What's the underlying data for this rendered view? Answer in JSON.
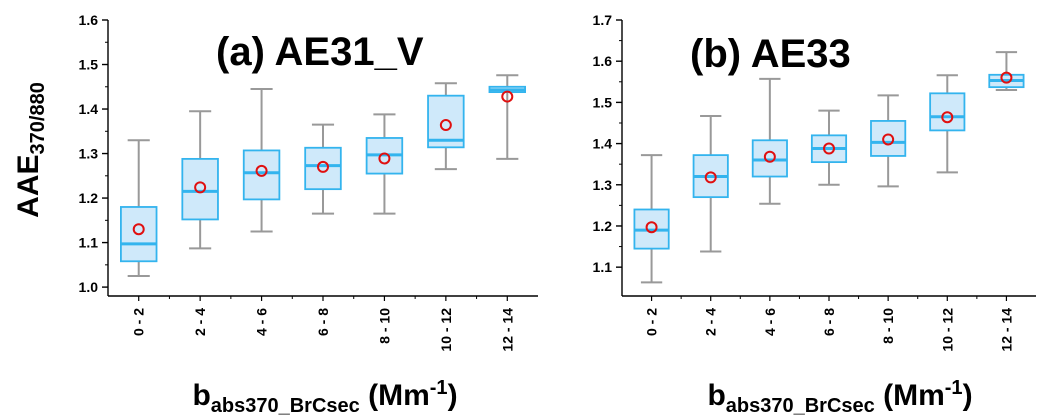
{
  "chart_data": [
    {
      "type": "box",
      "title": "(a) AE31_V",
      "ylabel": {
        "main": "AAE",
        "sub": "370/880"
      },
      "xlabel": {
        "main": "b",
        "sub": "abs370_BrCsec",
        "unit_pre": " (Mm",
        "unit_sup": "-1",
        "unit_post": ")"
      },
      "ylim": [
        0.98,
        1.6
      ],
      "yticks": [
        "1.0",
        "1.1",
        "1.2",
        "1.3",
        "1.4",
        "1.5",
        "1.6"
      ],
      "categories": [
        "0 - 2",
        "2 - 4",
        "4 - 6",
        "6 - 8",
        "8 - 10",
        "10 - 12",
        "12 - 14"
      ],
      "boxes": [
        {
          "whisker_low": 1.025,
          "q1": 1.058,
          "median": 1.097,
          "q3": 1.18,
          "whisker_high": 1.33,
          "mean": 1.13
        },
        {
          "whisker_low": 1.087,
          "q1": 1.152,
          "median": 1.215,
          "q3": 1.288,
          "whisker_high": 1.395,
          "mean": 1.224
        },
        {
          "whisker_low": 1.125,
          "q1": 1.197,
          "median": 1.257,
          "q3": 1.307,
          "whisker_high": 1.445,
          "mean": 1.261
        },
        {
          "whisker_low": 1.165,
          "q1": 1.22,
          "median": 1.273,
          "q3": 1.313,
          "whisker_high": 1.365,
          "mean": 1.27
        },
        {
          "whisker_low": 1.165,
          "q1": 1.255,
          "median": 1.297,
          "q3": 1.335,
          "whisker_high": 1.388,
          "mean": 1.289
        },
        {
          "whisker_low": 1.265,
          "q1": 1.314,
          "median": 1.33,
          "q3": 1.43,
          "whisker_high": 1.458,
          "mean": 1.364
        },
        {
          "whisker_low": 1.288,
          "q1": 1.438,
          "median": 1.443,
          "q3": 1.45,
          "whisker_high": 1.476,
          "mean": 1.428
        }
      ]
    },
    {
      "type": "box",
      "title": "(b) AE33",
      "ylabel": {
        "main": "",
        "sub": ""
      },
      "xlabel": {
        "main": "b",
        "sub": "abs370_BrCsec",
        "unit_pre": " (Mm",
        "unit_sup": "-1",
        "unit_post": ")"
      },
      "ylim": [
        1.03,
        1.7
      ],
      "yticks": [
        "1.1",
        "1.2",
        "1.3",
        "1.4",
        "1.5",
        "1.6",
        "1.7"
      ],
      "categories": [
        "0 - 2",
        "2 - 4",
        "4 - 6",
        "6 - 8",
        "8 - 10",
        "10 - 12",
        "12 - 14"
      ],
      "boxes": [
        {
          "whisker_low": 1.063,
          "q1": 1.145,
          "median": 1.19,
          "q3": 1.24,
          "whisker_high": 1.372,
          "mean": 1.197
        },
        {
          "whisker_low": 1.138,
          "q1": 1.27,
          "median": 1.32,
          "q3": 1.372,
          "whisker_high": 1.467,
          "mean": 1.318
        },
        {
          "whisker_low": 1.254,
          "q1": 1.32,
          "median": 1.36,
          "q3": 1.408,
          "whisker_high": 1.557,
          "mean": 1.368
        },
        {
          "whisker_low": 1.3,
          "q1": 1.355,
          "median": 1.388,
          "q3": 1.42,
          "whisker_high": 1.48,
          "mean": 1.388
        },
        {
          "whisker_low": 1.296,
          "q1": 1.37,
          "median": 1.403,
          "q3": 1.455,
          "whisker_high": 1.517,
          "mean": 1.41
        },
        {
          "whisker_low": 1.33,
          "q1": 1.432,
          "median": 1.465,
          "q3": 1.522,
          "whisker_high": 1.566,
          "mean": 1.464
        },
        {
          "whisker_low": 1.53,
          "q1": 1.537,
          "median": 1.553,
          "q3": 1.567,
          "whisker_high": 1.622,
          "mean": 1.56
        }
      ]
    }
  ],
  "colors": {
    "box_fill": "#cfe9fa",
    "box_edge": "#33b4ee",
    "median": "#33b4ee",
    "whisker": "#999999",
    "mean_marker": "#e01010",
    "axis": "#000000"
  }
}
